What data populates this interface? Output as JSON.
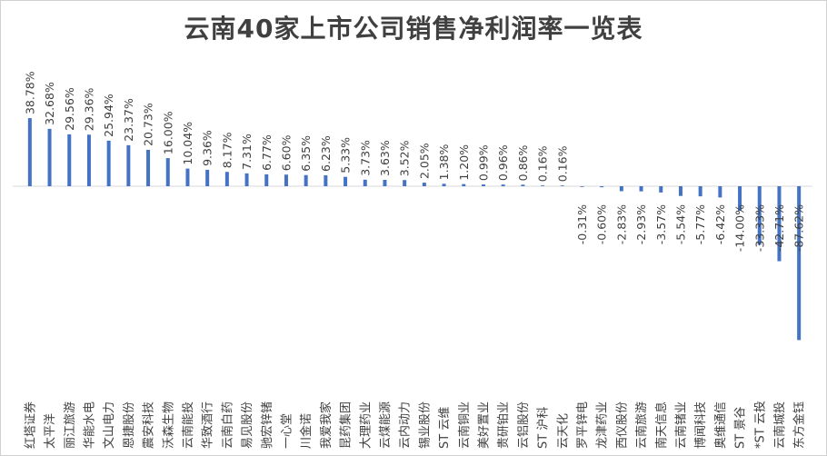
{
  "title": "云南40家上市公司销售净利润率一览表",
  "chart_data": {
    "type": "bar",
    "orientation": "vertical",
    "bar_color": "#4472c4",
    "title": "云南40家上市公司销售净利润率一览表",
    "unit": "%",
    "categories": [
      "红塔证券",
      "太平洋",
      "丽江旅游",
      "华能水电",
      "文山电力",
      "恩捷股份",
      "震安科技",
      "沃森生物",
      "云南能投",
      "华致酒行",
      "云南白药",
      "易见股份",
      "驰宏锌锗",
      "一心堂",
      "川金诺",
      "我爱我家",
      "昆药集团",
      "大理药业",
      "云煤能源",
      "云内动力",
      "锡业股份",
      "ST 云维",
      "云南铜业",
      "美好置业",
      "贵研铂业",
      "云铝股份",
      "ST 沪科",
      "云天化",
      "罗平锌电",
      "龙津药业",
      "西仪股份",
      "云南旅游",
      "南天信息",
      "云南锗业",
      "博闻科技",
      "奥维通信",
      "ST 景谷",
      "*ST 云投",
      "云南城投",
      "东方金钰"
    ],
    "labels": [
      "38.78%",
      "32.68%",
      "29.56%",
      "29.36%",
      "25.94%",
      "23.37%",
      "20.73%",
      "16.00%",
      "10.04%",
      "9.36%",
      "8.17%",
      "7.31%",
      "6.77%",
      "6.60%",
      "6.35%",
      "6.23%",
      "5.33%",
      "3.73%",
      "3.63%",
      "3.52%",
      "2.05%",
      "1.38%",
      "1.20%",
      "0.99%",
      "0.96%",
      "0.86%",
      "0.16%",
      "0.16%",
      "-0.31%",
      "-0.60%",
      "-2.83%",
      "-2.93%",
      "-3.57%",
      "-5.54%",
      "-5.77%",
      "-6.42%",
      "-14.00%",
      "-33.33%",
      "-42.71%",
      "-87.62%"
    ],
    "values": [
      38.78,
      32.68,
      29.56,
      29.36,
      25.94,
      23.37,
      20.73,
      16.0,
      10.04,
      9.36,
      8.17,
      7.31,
      6.77,
      6.6,
      6.35,
      6.23,
      5.33,
      3.73,
      3.63,
      3.52,
      2.05,
      1.38,
      1.2,
      0.99,
      0.96,
      0.86,
      0.16,
      0.16,
      -0.31,
      -0.6,
      -2.83,
      -2.93,
      -3.57,
      -5.54,
      -5.77,
      -6.42,
      -14.0,
      -33.33,
      -42.71,
      -87.62
    ]
  }
}
